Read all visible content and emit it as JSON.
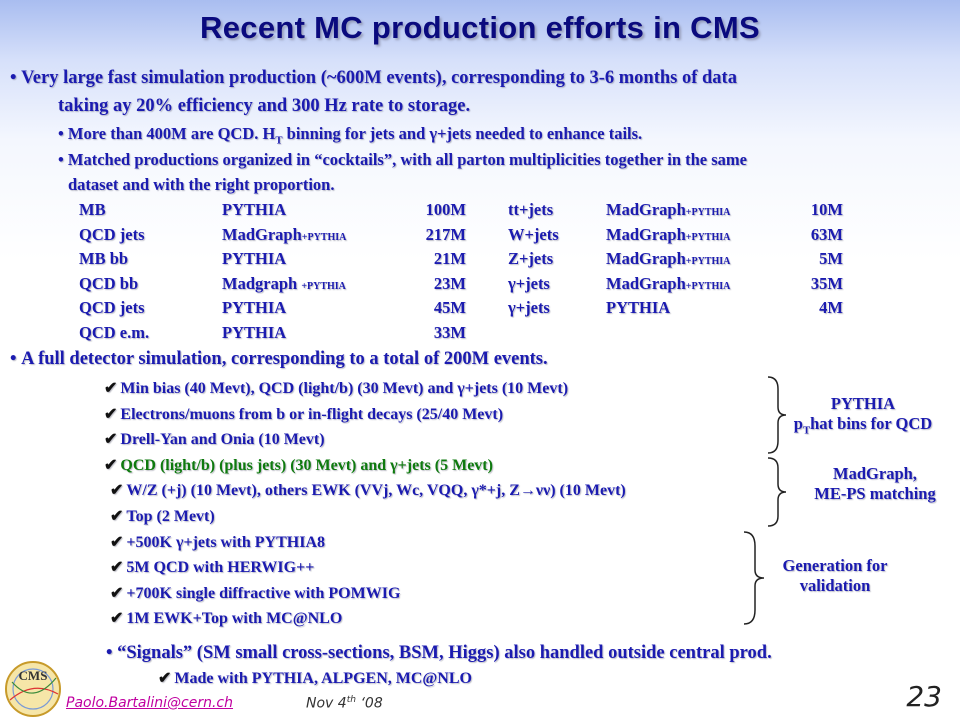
{
  "title": "Recent MC production efforts in CMS",
  "fast_sim": {
    "line1": "Very large fast simulation production (~600M events), corresponding to 3-6 months of data",
    "line2": "taking ay 20% efficiency and 300 Hz rate to storage.",
    "sub1_pre": "More than 400M are QCD. H",
    "sub1_sub": "T",
    "sub1_post": " binning for jets and γ+jets needed to enhance tails.",
    "sub2_line1": "Matched productions organized in “cocktails”, with all parton multiplicities together in the same",
    "sub2_line2": "dataset and with the right proportion."
  },
  "table_left": [
    {
      "name": "MB",
      "gen": "PYTHIA",
      "gen_sub": "",
      "count": "100M"
    },
    {
      "name": "QCD jets",
      "gen": "MadGraph",
      "gen_sub": "+PYTHIA",
      "count": "217M"
    },
    {
      "name": "MB bb",
      "gen": "PYTHIA",
      "gen_sub": "",
      "count": "21M"
    },
    {
      "name": "QCD bb",
      "gen": "Madgraph ",
      "gen_sub": "+PYTHIA",
      "count": "23M"
    },
    {
      "name": "QCD jets",
      "gen": "PYTHIA",
      "gen_sub": "",
      "count": "45M"
    },
    {
      "name": "QCD e.m.",
      "gen": "PYTHIA",
      "gen_sub": "",
      "count": "33M"
    }
  ],
  "table_right": [
    {
      "name": "tt+jets",
      "gen": "MadGraph",
      "gen_sub": "+PYTHIA",
      "count": "10M"
    },
    {
      "name": "W+jets",
      "gen": "MadGraph",
      "gen_sub": "+PYTHIA",
      "count": "63M"
    },
    {
      "name": "Z+jets",
      "gen": "MadGraph",
      "gen_sub": "+PYTHIA",
      "count": "5M"
    },
    {
      "name": "γ+jets",
      "gen": "MadGraph",
      "gen_sub": "+PYTHIA",
      "count": "35M"
    },
    {
      "name": "γ+jets",
      "gen": "PYTHIA",
      "gen_sub": "",
      "count": "4M"
    }
  ],
  "full_sim": {
    "heading": "A full detector simulation, corresponding to a total of 200M events.",
    "items": [
      "Min bias (40 Mevt), QCD (light/b) (30 Mevt) and γ+jets (10 Mevt)",
      "Electrons/muons from b or in-flight decays (25/40 Mevt)",
      "Drell-Yan and Onia (10 Mevt)",
      "QCD (light/b) (plus jets) (30 Mevt) and γ+jets (5 Mevt)",
      "W/Z (+j) (10 Mevt), others EWK (VVj, Wc, VQQ, γ*+j, Z→νν) (10 Mevt)",
      "Top (2 Mevt)",
      "+500K γ+jets with PYTHIA8",
      "5M QCD with HERWIG++",
      "+700K single diffractive with POMWIG",
      "1M EWK+Top with MC@NLO"
    ]
  },
  "notes": {
    "pythia_line1": "PYTHIA",
    "pythia_line2_pre": "p",
    "pythia_line2_sub": "T",
    "pythia_line2_post": "hat bins for QCD",
    "madgraph_line1": "MadGraph,",
    "madgraph_line2": "ME-PS matching",
    "validation_line1": "Generation for",
    "validation_line2": "validation"
  },
  "signals": {
    "heading": "“Signals” (SM small cross-sections, BSM, Higgs) also handled outside central prod.",
    "item": "Made with PYTHIA, ALPGEN, MC@NLO"
  },
  "footer": {
    "email": "Paolo.Bartalini@cern.ch",
    "date_pre": "Nov 4",
    "date_sup": "th",
    "date_post": " ‘08",
    "page": "23",
    "logo_text": "CMS"
  },
  "colors": {
    "title": "#0a0a7e",
    "text": "#1b1bb0",
    "green_item": "#0e7a0e",
    "email": "#c000a0"
  }
}
